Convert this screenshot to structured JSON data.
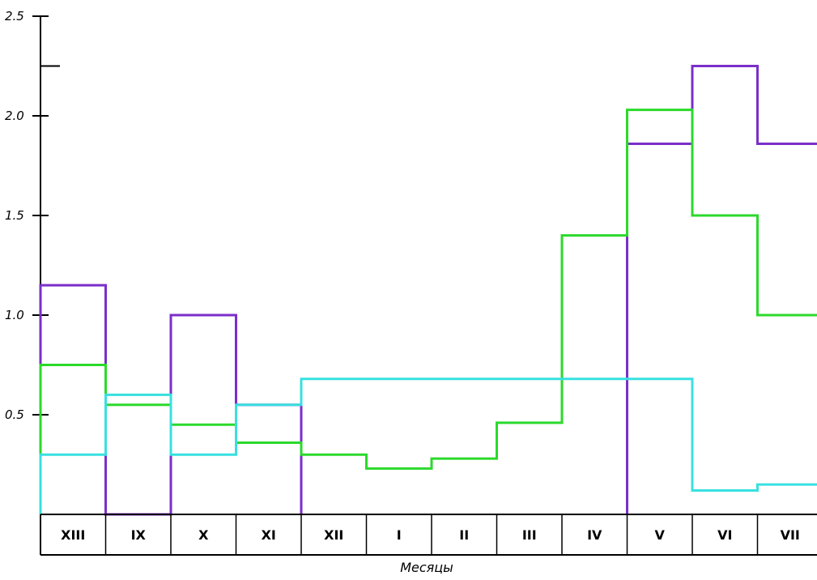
{
  "chart_data": {
    "type": "line",
    "step": true,
    "title": "",
    "xlabel": "Месяцы",
    "ylabel": "",
    "ylim": [
      0,
      2.5
    ],
    "yticks": [
      0.5,
      1.0,
      1.5,
      2.0,
      2.5
    ],
    "ytick_labels": [
      "0.5",
      "1.0",
      "1.5",
      "2.0",
      "2.5"
    ],
    "categories": [
      "XIII",
      "IX",
      "X",
      "XI",
      "XII",
      "I",
      "II",
      "III",
      "IV",
      "V",
      "VI",
      "VII"
    ],
    "series": [
      {
        "color": "#7b2fc9",
        "values": [
          1.15,
          0,
          1.0,
          0.55,
          null,
          null,
          null,
          null,
          null,
          1.86,
          2.25,
          1.86
        ]
      },
      {
        "color": "#2bd92b",
        "values": [
          0.75,
          0.55,
          0.45,
          0.36,
          0.3,
          0.23,
          0.28,
          0.46,
          1.4,
          2.03,
          1.5,
          1.0
        ]
      },
      {
        "color": "#38e0e0",
        "values": [
          0.3,
          0.6,
          0.3,
          0.55,
          0.68,
          0.68,
          0.68,
          0.68,
          0.68,
          0.68,
          0.12,
          0.15
        ]
      }
    ]
  }
}
